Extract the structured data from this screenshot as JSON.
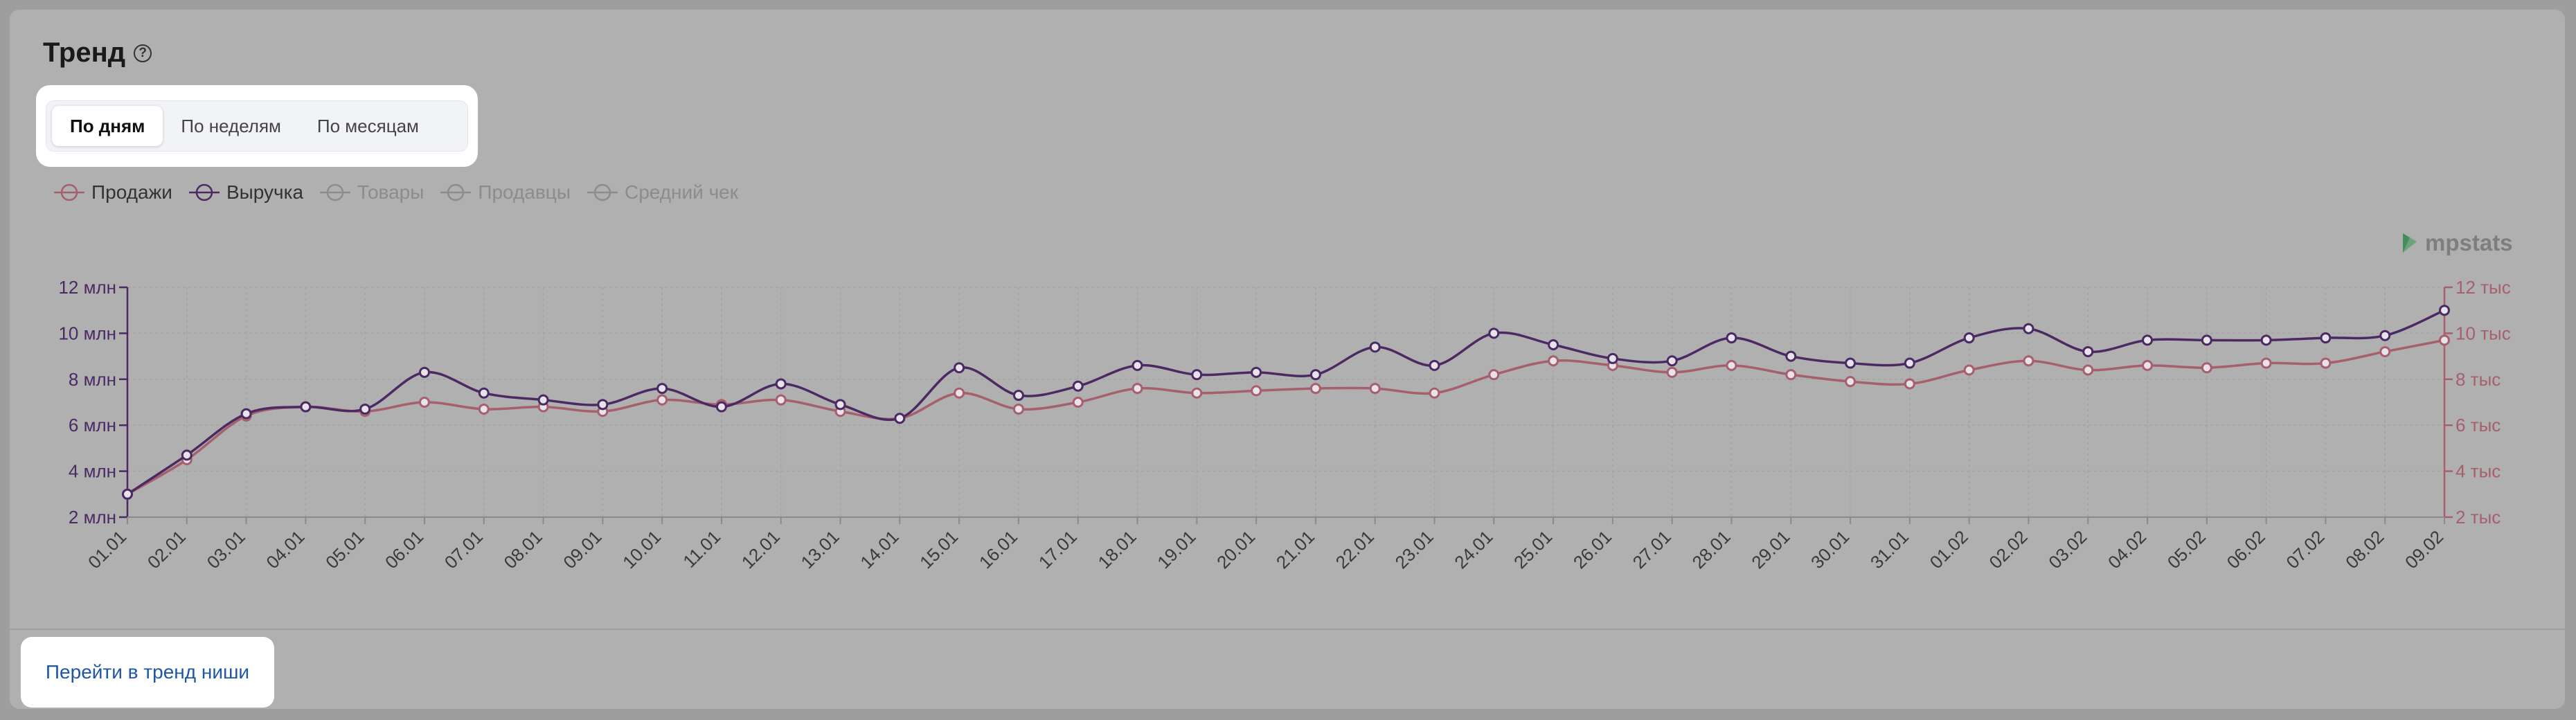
{
  "header": {
    "title": "Тренд",
    "help_symbol": "?"
  },
  "tabs": [
    {
      "label": "По дням",
      "active": true
    },
    {
      "label": "По неделям",
      "active": false
    },
    {
      "label": "По месяцам",
      "active": false
    }
  ],
  "legend": [
    {
      "label": "Продажи",
      "color": "#a65f6d",
      "active": true
    },
    {
      "label": "Выручка",
      "color": "#4b2a63",
      "active": true
    },
    {
      "label": "Товары",
      "color": "#8c8c8c",
      "active": false
    },
    {
      "label": "Продавцы",
      "color": "#8c8c8c",
      "active": false
    },
    {
      "label": "Средний чек",
      "color": "#8c8c8c",
      "active": false
    }
  ],
  "logo": {
    "text": "mpstats",
    "icon": "mpstats-logo-icon"
  },
  "footer": {
    "link_label": "Перейти в тренд ниши"
  },
  "chart_data": {
    "type": "line",
    "categories": [
      "01.01",
      "02.01",
      "03.01",
      "04.01",
      "05.01",
      "06.01",
      "07.01",
      "08.01",
      "09.01",
      "10.01",
      "11.01",
      "12.01",
      "13.01",
      "14.01",
      "15.01",
      "16.01",
      "17.01",
      "18.01",
      "19.01",
      "20.01",
      "21.01",
      "22.01",
      "23.01",
      "24.01",
      "25.01",
      "26.01",
      "27.01",
      "28.01",
      "29.01",
      "30.01",
      "31.01",
      "01.02",
      "02.02",
      "03.02",
      "04.02",
      "05.02",
      "06.02",
      "07.02",
      "08.02",
      "09.02"
    ],
    "series": [
      {
        "name": "Продажи",
        "axis": "right",
        "color": "#a65f6d",
        "values": [
          3.0,
          4.5,
          6.4,
          6.8,
          6.6,
          7.0,
          6.7,
          6.8,
          6.6,
          7.1,
          6.9,
          7.1,
          6.6,
          6.3,
          7.4,
          6.7,
          7.0,
          7.6,
          7.4,
          7.5,
          7.6,
          7.6,
          7.4,
          8.2,
          8.8,
          8.6,
          8.3,
          8.6,
          8.2,
          7.9,
          7.8,
          8.4,
          8.8,
          8.4,
          8.6,
          8.5,
          8.7,
          8.7,
          9.2,
          9.7
        ]
      },
      {
        "name": "Выручка",
        "axis": "left",
        "color": "#4b2a63",
        "values": [
          3.0,
          4.7,
          6.5,
          6.8,
          6.7,
          8.3,
          7.4,
          7.1,
          6.9,
          7.6,
          6.8,
          7.8,
          6.9,
          6.3,
          8.5,
          7.3,
          7.7,
          8.6,
          8.2,
          8.3,
          8.2,
          9.4,
          8.6,
          10.0,
          9.5,
          8.9,
          8.8,
          9.8,
          9.0,
          8.7,
          8.7,
          9.8,
          10.2,
          9.2,
          9.7,
          9.7,
          9.7,
          9.8,
          9.9,
          11.0
        ]
      }
    ],
    "y_left": {
      "ticks": [
        "2 млн",
        "4 млн",
        "6 млн",
        "8 млн",
        "10 млн",
        "12 млн"
      ],
      "range": [
        2,
        12
      ],
      "color": "#4b2a63"
    },
    "y_right": {
      "ticks": [
        "2 тыс",
        "4 тыс",
        "6 тыс",
        "8 тыс",
        "10 тыс",
        "12 тыс"
      ],
      "range": [
        2,
        12
      ],
      "color": "#a65f6d"
    },
    "grid": true,
    "legend_position": "top-left"
  },
  "actions": {
    "link_label": "Перейти в тренд ниши"
  }
}
